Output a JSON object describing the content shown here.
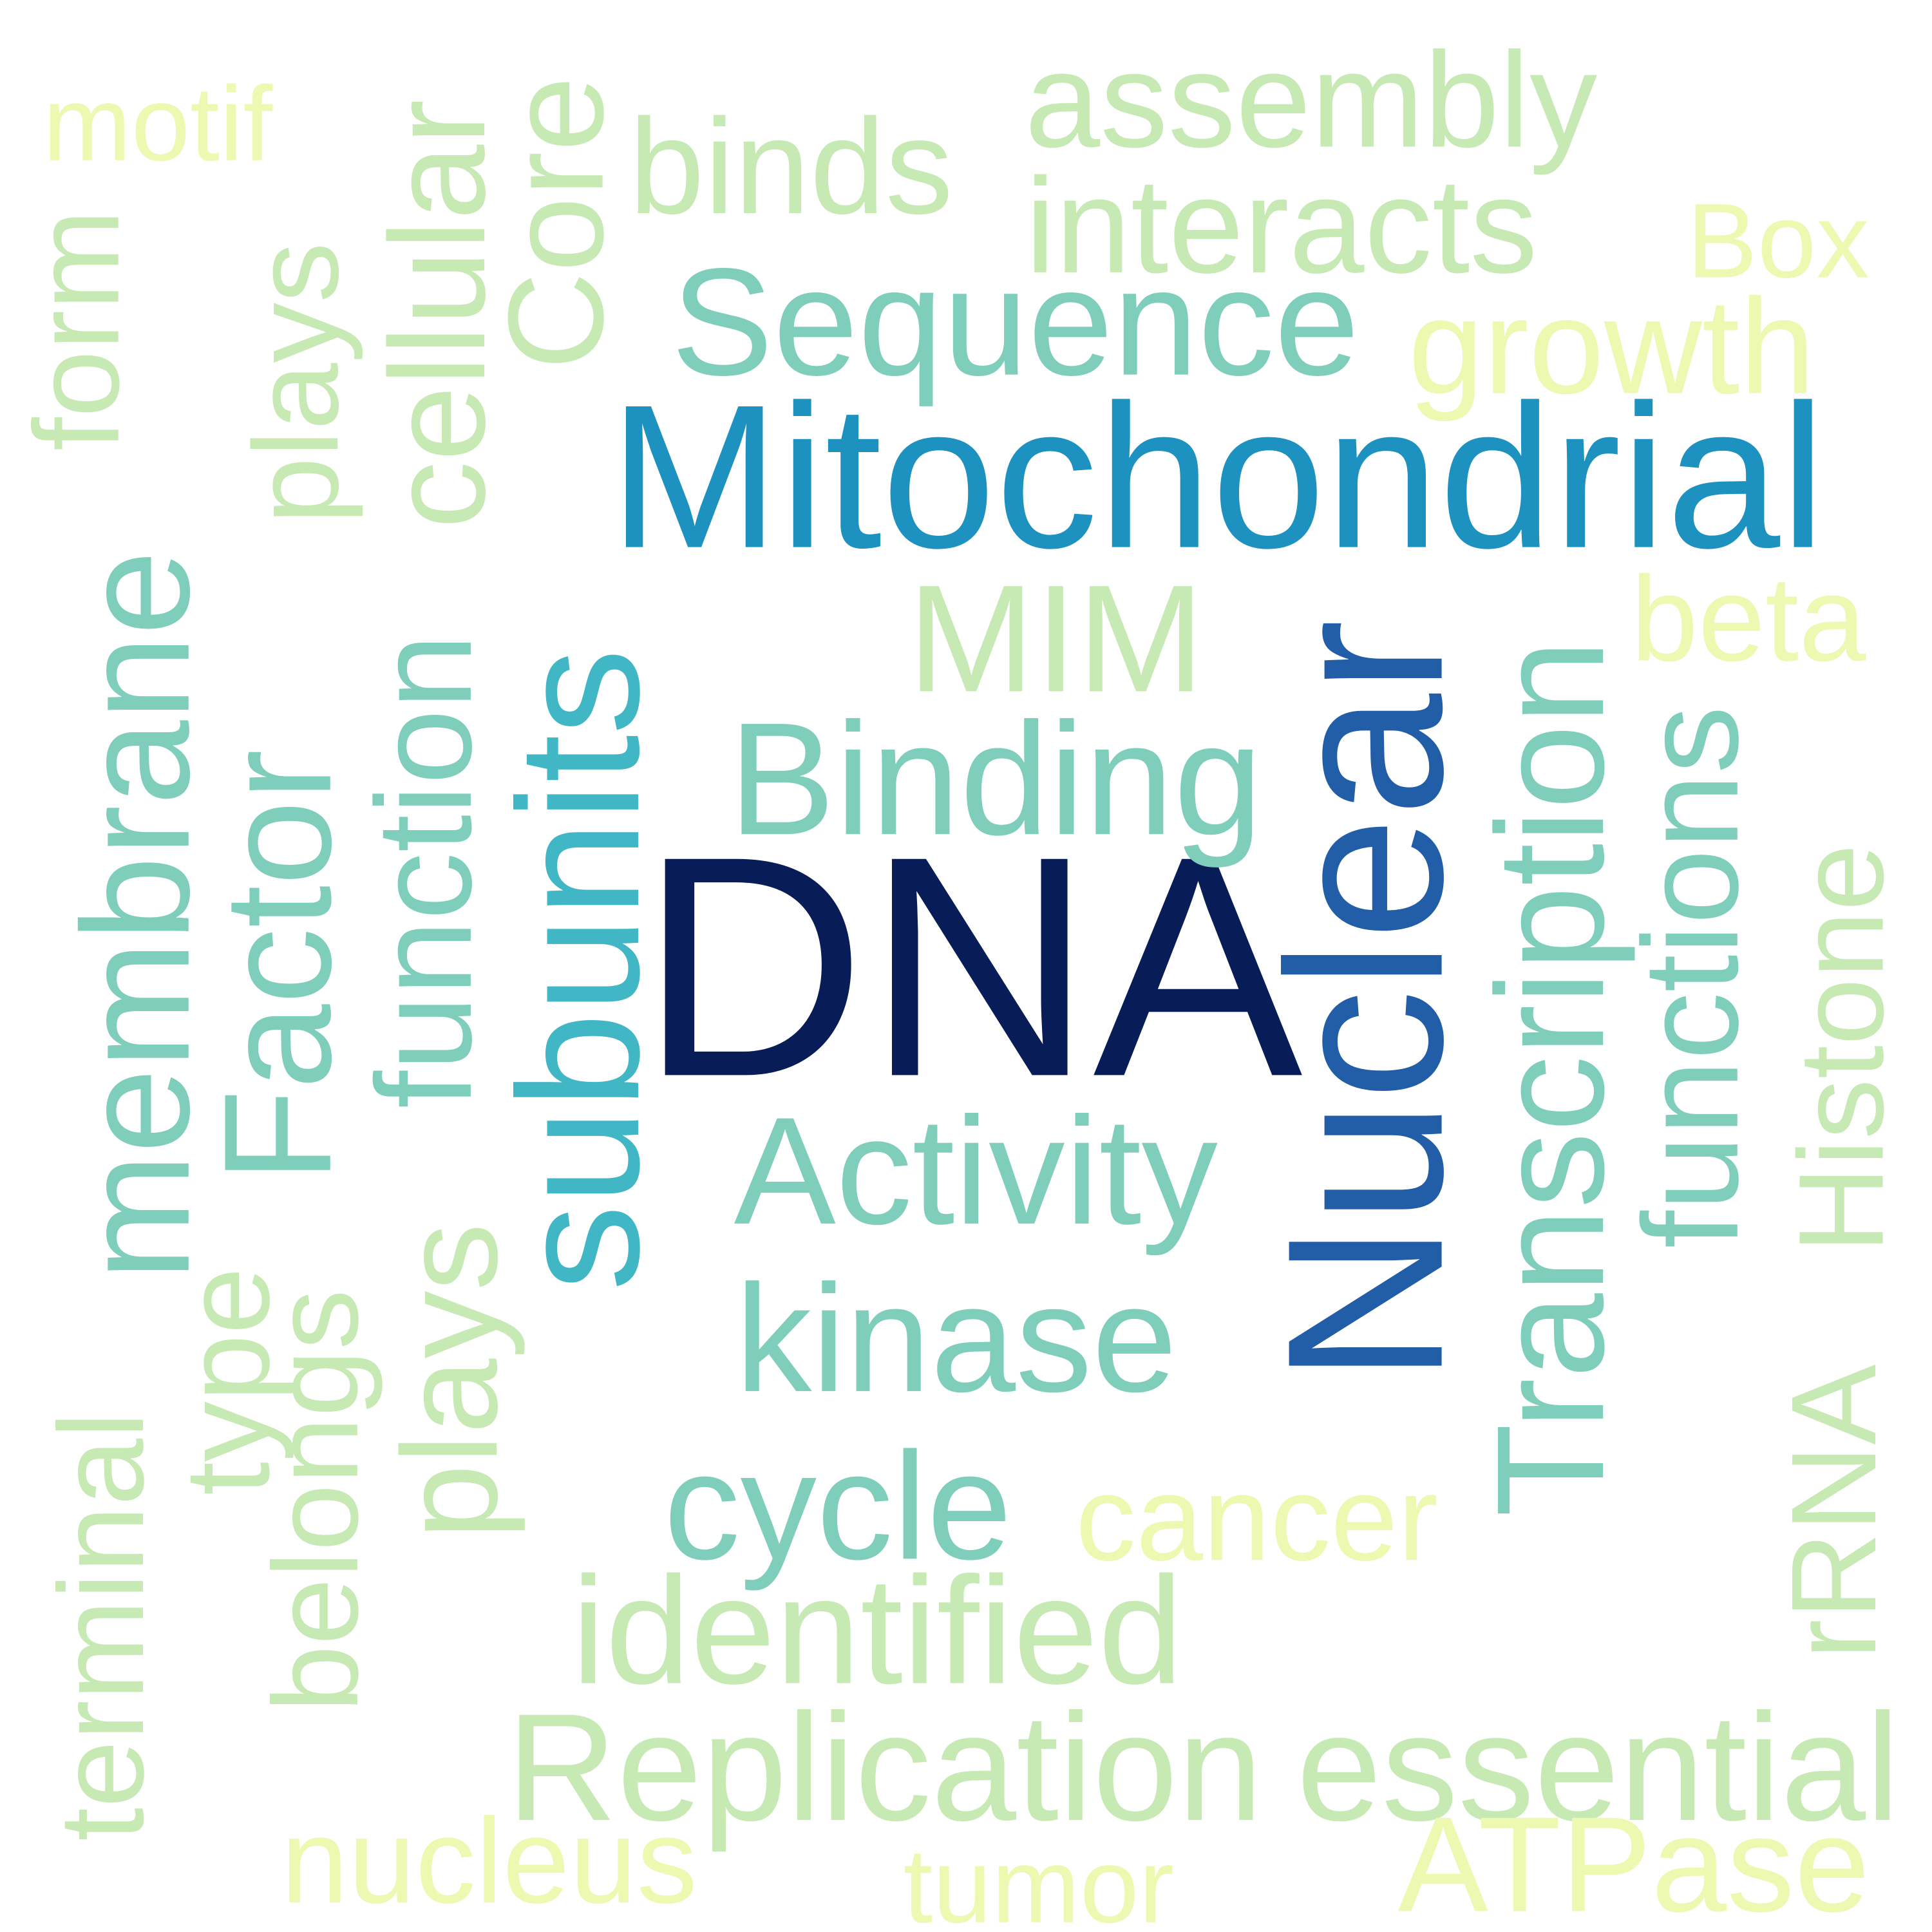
{
  "words": {
    "dna": {
      "text": "DNA",
      "color": "#081d58"
    },
    "nuclear": {
      "text": "Nuclear",
      "color": "#225ea8"
    },
    "mitochondrial": {
      "text": "Mitochondrial",
      "color": "#1d91c0"
    },
    "subunits": {
      "text": "subunits",
      "color": "#41b6c4"
    },
    "transcription": {
      "text": "Transcription",
      "color": "#7fcdbb"
    },
    "binding": {
      "text": "Binding",
      "color": "#7fcdbb"
    },
    "sequence": {
      "text": "Sequence",
      "color": "#7fcdbb"
    },
    "membrane": {
      "text": "membrane",
      "color": "#7fcdbb"
    },
    "activity": {
      "text": "Activity",
      "color": "#7fcdbb"
    },
    "kinase": {
      "text": "kinase",
      "color": "#7fcdbb"
    },
    "functions": {
      "text": "functions",
      "color": "#7fcdbb"
    },
    "function": {
      "text": "function",
      "color": "#7fcdbb"
    },
    "factor": {
      "text": "Factor",
      "color": "#7fcdbb"
    },
    "cycle": {
      "text": "cycle",
      "color": "#7fcdbb"
    },
    "interacts": {
      "text": "interacts",
      "color": "#c7e9b4"
    },
    "assembly": {
      "text": "assembly",
      "color": "#c7e9b4"
    },
    "binds": {
      "text": "binds",
      "color": "#c7e9b4"
    },
    "core": {
      "text": "Core",
      "color": "#c7e9b4"
    },
    "cellular": {
      "text": "cellular",
      "color": "#c7e9b4"
    },
    "plays_top": {
      "text": "plays",
      "color": "#c7e9b4"
    },
    "plays_bottom": {
      "text": "plays",
      "color": "#c7e9b4"
    },
    "form": {
      "text": "form",
      "color": "#c7e9b4"
    },
    "mim": {
      "text": "MIM",
      "color": "#c7e9b4"
    },
    "histone": {
      "text": "Histone",
      "color": "#c7e9b4"
    },
    "rrna": {
      "text": "rRNA",
      "color": "#c7e9b4"
    },
    "identified": {
      "text": "identified",
      "color": "#c7e9b4"
    },
    "replication": {
      "text": "Replication",
      "color": "#c7e9b4"
    },
    "essential": {
      "text": "essential",
      "color": "#c7e9b4"
    },
    "terminal": {
      "text": "terminal",
      "color": "#c7e9b4"
    },
    "belongs": {
      "text": "belongs",
      "color": "#c7e9b4"
    },
    "type": {
      "text": "type",
      "color": "#c7e9b4"
    },
    "motif": {
      "text": "motif",
      "color": "#edf8b1"
    },
    "box": {
      "text": "Box",
      "color": "#edf8b1"
    },
    "growth": {
      "text": "growth",
      "color": "#edf8b1"
    },
    "beta": {
      "text": "beta",
      "color": "#edf8b1"
    },
    "cancer": {
      "text": "cancer",
      "color": "#edf8b1"
    },
    "nucleus": {
      "text": "nucleus",
      "color": "#edf8b1"
    },
    "tumor": {
      "text": "tumor",
      "color": "#edf8b1"
    },
    "atpase": {
      "text": "ATPase",
      "color": "#edf8b1"
    }
  }
}
